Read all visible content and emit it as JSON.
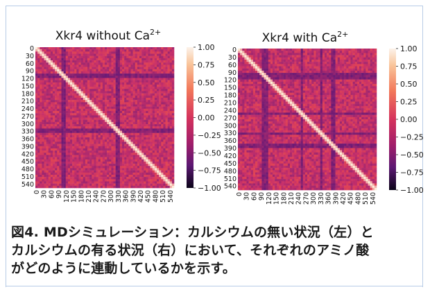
{
  "chart_data": [
    {
      "type": "heatmap",
      "title": "Xkr4 without Ca",
      "title_sup": "2+",
      "x_ticks": [
        0,
        30,
        60,
        90,
        120,
        150,
        180,
        210,
        240,
        270,
        300,
        330,
        360,
        390,
        420,
        450,
        480,
        510,
        540
      ],
      "y_ticks": [
        0,
        30,
        60,
        90,
        120,
        150,
        180,
        210,
        240,
        270,
        300,
        330,
        360,
        390,
        420,
        450,
        480,
        510,
        540
      ],
      "colorbar_ticks": [
        "1.00",
        "0.75",
        "0.50",
        "0.25",
        "0.00",
        "−0.25",
        "−0.50",
        "−0.75",
        "−1.00"
      ],
      "vmin": -1.0,
      "vmax": 1.0,
      "n_residues": 560,
      "low_band_ranges": [
        [
          105,
          125
        ],
        [
          325,
          345
        ]
      ],
      "colors": {
        "high": "#fcecd8",
        "mid": "#e04455",
        "base": "#c7306a",
        "low": "#6a1a75",
        "min": "#140c2e"
      }
    },
    {
      "type": "heatmap",
      "title": "Xkr4 with Ca",
      "title_sup": "2+",
      "x_ticks": [
        0,
        30,
        60,
        90,
        120,
        150,
        180,
        210,
        240,
        270,
        300,
        330,
        360,
        390,
        420,
        450,
        480,
        510,
        540
      ],
      "y_ticks": [
        0,
        30,
        60,
        90,
        120,
        150,
        180,
        210,
        240,
        270,
        300,
        330,
        360,
        390,
        420,
        450,
        480,
        510,
        540
      ],
      "colorbar_ticks": [
        "1.00",
        "0.75",
        "0.50",
        "0.25",
        "0.00",
        "−0.25",
        "−0.50",
        "−0.75",
        "−1.00"
      ],
      "vmin": -1.0,
      "vmax": 1.0,
      "n_residues": 560,
      "low_band_ranges": [
        [
          100,
          125
        ],
        [
          250,
          265
        ],
        [
          330,
          345
        ],
        [
          380,
          395
        ]
      ],
      "colors": {
        "high": "#fcecd8",
        "mid": "#e04455",
        "base": "#c7306a",
        "low": "#6a1a75",
        "min": "#140c2e"
      }
    }
  ],
  "caption": {
    "line1": "図4. MDシミュレーション：カルシウムの無い状況（左）と",
    "line2": "カルシウムの有る状況（右）において、それぞれのアミノ酸",
    "line3": "がどのように連動しているかを示す。"
  }
}
